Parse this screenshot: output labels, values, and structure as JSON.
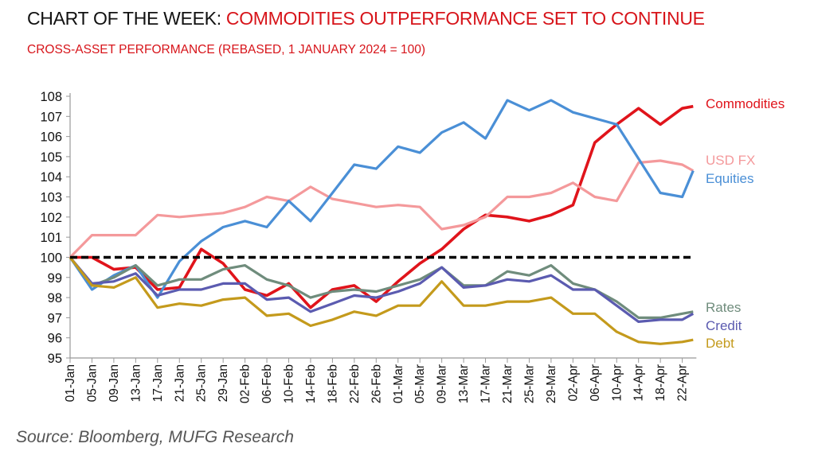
{
  "title_prefix": "CHART OF THE WEEK: ",
  "title_main": "COMMODITIES OUTPERFORMANCE SET TO CONTINUE",
  "subtitle": "CROSS-ASSET PERFORMANCE (REBASED, 1 JANUARY 2024 = 100)",
  "source": "Source: Bloomberg,  MUFG Research",
  "colors": {
    "title_accent": "#d7141a",
    "baseline": "#000000"
  },
  "chart_data": {
    "type": "line",
    "title": "",
    "xlabel": "",
    "ylabel": "",
    "ylim": [
      95,
      108
    ],
    "yticks": [
      95,
      96,
      97,
      98,
      99,
      100,
      101,
      102,
      103,
      104,
      105,
      106,
      107,
      108
    ],
    "xtick_labels": [
      "01-Jan",
      "05-Jan",
      "09-Jan",
      "13-Jan",
      "17-Jan",
      "21-Jan",
      "25-Jan",
      "29-Jan",
      "02-Feb",
      "06-Feb",
      "10-Feb",
      "14-Feb",
      "18-Feb",
      "22-Feb",
      "26-Feb",
      "01-Mar",
      "05-Mar",
      "09-Mar",
      "13-Mar",
      "17-Mar",
      "21-Mar",
      "25-Mar",
      "29-Mar",
      "02-Apr",
      "06-Apr",
      "10-Apr",
      "14-Apr",
      "18-Apr",
      "22-Apr"
    ],
    "x": [
      "01-Jan",
      "05-Jan",
      "09-Jan",
      "13-Jan",
      "17-Jan",
      "21-Jan",
      "25-Jan",
      "29-Jan",
      "02-Feb",
      "06-Feb",
      "10-Feb",
      "14-Feb",
      "18-Feb",
      "22-Feb",
      "26-Feb",
      "01-Mar",
      "05-Mar",
      "09-Mar",
      "13-Mar",
      "17-Mar",
      "21-Mar",
      "25-Mar",
      "29-Mar",
      "02-Apr",
      "06-Apr",
      "10-Apr",
      "14-Apr",
      "18-Apr",
      "22-Apr",
      "24-Apr"
    ],
    "grid": false,
    "legend": "right, labels at line ends",
    "reference_line": {
      "value": 100,
      "style": "dashed"
    },
    "series": [
      {
        "name": "Commodities",
        "color": "#e0141b",
        "values": [
          100,
          100,
          99.4,
          99.5,
          98.4,
          98.5,
          100.4,
          99.7,
          98.4,
          98.1,
          98.7,
          97.5,
          98.4,
          98.6,
          97.8,
          98.8,
          99.7,
          100.4,
          101.4,
          102.1,
          102.0,
          101.8,
          102.1,
          102.6,
          105.7,
          106.6,
          107.4,
          106.6,
          107.4,
          107.5
        ]
      },
      {
        "name": "USD FX",
        "color": "#f4999b",
        "values": [
          100,
          101.1,
          101.1,
          101.1,
          102.1,
          102.0,
          102.1,
          102.2,
          102.5,
          103.0,
          102.8,
          103.5,
          102.9,
          102.7,
          102.5,
          102.6,
          102.5,
          101.4,
          101.6,
          102.0,
          103.0,
          103.0,
          103.2,
          103.7,
          103.0,
          102.8,
          104.7,
          104.8,
          104.6,
          104.3
        ]
      },
      {
        "name": "Equities",
        "color": "#4a8fd6",
        "values": [
          100,
          98.4,
          99.1,
          99.6,
          98.0,
          99.8,
          100.8,
          101.5,
          101.8,
          101.5,
          102.8,
          101.8,
          103.2,
          104.6,
          104.4,
          105.5,
          105.2,
          106.2,
          106.7,
          105.9,
          107.8,
          107.3,
          107.8,
          107.2,
          106.9,
          106.6,
          104.9,
          103.2,
          103.0,
          104.3
        ]
      },
      {
        "name": "Rates",
        "color": "#6f8c7c",
        "values": [
          100,
          98.6,
          99.0,
          99.6,
          98.6,
          98.9,
          98.9,
          99.4,
          99.6,
          98.9,
          98.6,
          98.0,
          98.3,
          98.4,
          98.3,
          98.6,
          98.9,
          99.5,
          98.6,
          98.6,
          99.3,
          99.1,
          99.6,
          98.7,
          98.4,
          97.8,
          97.0,
          97.0,
          97.2,
          97.3
        ]
      },
      {
        "name": "Credit",
        "color": "#5b5bb0",
        "values": [
          100,
          98.7,
          98.8,
          99.2,
          98.1,
          98.4,
          98.4,
          98.7,
          98.7,
          97.9,
          98.0,
          97.3,
          97.7,
          98.1,
          98.0,
          98.3,
          98.7,
          99.5,
          98.5,
          98.6,
          98.9,
          98.8,
          99.1,
          98.4,
          98.4,
          97.6,
          96.8,
          96.9,
          96.9,
          97.2
        ]
      },
      {
        "name": "Debt",
        "color": "#c49a1c",
        "values": [
          100,
          98.6,
          98.5,
          99.0,
          97.5,
          97.7,
          97.6,
          97.9,
          98.0,
          97.1,
          97.2,
          96.6,
          96.9,
          97.3,
          97.1,
          97.6,
          97.6,
          98.8,
          97.6,
          97.6,
          97.8,
          97.8,
          98.0,
          97.2,
          97.2,
          96.3,
          95.8,
          95.7,
          95.8,
          95.9
        ]
      }
    ]
  }
}
